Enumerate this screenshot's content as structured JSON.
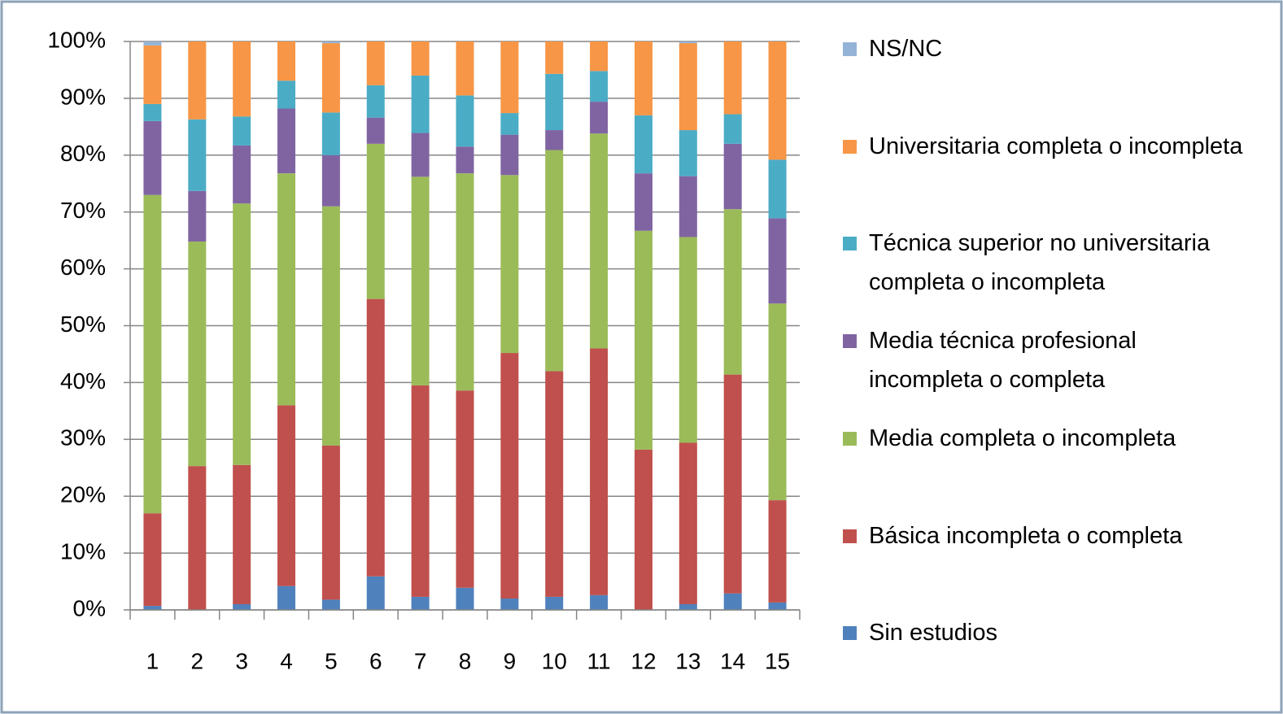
{
  "chart_data": {
    "type": "bar",
    "stacked": true,
    "categories": [
      "1",
      "2",
      "3",
      "4",
      "5",
      "6",
      "7",
      "8",
      "9",
      "10",
      "11",
      "12",
      "13",
      "14",
      "15"
    ],
    "series": [
      {
        "name": "Sin estudios",
        "color": "#4f81bd",
        "values": [
          0.7,
          0,
          1,
          4.2,
          1.8,
          5.9,
          2.3,
          3.9,
          2,
          2.3,
          2.6,
          0,
          1,
          2.9,
          1.3
        ]
      },
      {
        "name": "Básica incompleta o completa",
        "color": "#c0504d",
        "values": [
          16.3,
          25.3,
          24.5,
          31.8,
          27.1,
          48.8,
          37.2,
          34.7,
          43.2,
          39.7,
          43.4,
          28.2,
          28.4,
          38.5,
          18
        ]
      },
      {
        "name": "Media completa o incompleta",
        "color": "#9bbb59",
        "values": [
          56,
          39.5,
          46,
          40.8,
          42.1,
          27.3,
          36.7,
          38.2,
          31.3,
          38.9,
          37.8,
          38.5,
          36.2,
          29.1,
          34.6
        ]
      },
      {
        "name": "Media técnica profesional incompleta o completa",
        "color": "#8064a2",
        "values": [
          13,
          8.9,
          10.2,
          11.4,
          9,
          4.6,
          7.7,
          4.7,
          7.1,
          3.5,
          5.6,
          10.1,
          10.7,
          11.5,
          15
        ]
      },
      {
        "name": "Técnica superior no universitaria completa o incompleta",
        "color": "#4bacc6",
        "values": [
          3,
          12.6,
          5.1,
          4.9,
          7.5,
          5.7,
          10.1,
          9,
          3.8,
          9.9,
          5.4,
          10.2,
          8.1,
          5.2,
          10.3
        ]
      },
      {
        "name": "Universitaria completa o incompleta",
        "color": "#f79646",
        "values": [
          10.3,
          13.7,
          13.2,
          6.9,
          12.2,
          7.7,
          6,
          9.5,
          12.6,
          5.7,
          5.2,
          13,
          15.3,
          12.8,
          20.8
        ]
      },
      {
        "name": "NS/NC",
        "color": "#95b3d7",
        "values": [
          0.7,
          0,
          0,
          0,
          0.3,
          0,
          0,
          0,
          0,
          0,
          0,
          0,
          0.3,
          0,
          0
        ]
      }
    ],
    "ylim": [
      0,
      100
    ],
    "yticks": [
      {
        "value": 0,
        "label": "0%"
      },
      {
        "value": 10,
        "label": "10%"
      },
      {
        "value": 20,
        "label": "20%"
      },
      {
        "value": 30,
        "label": "30%"
      },
      {
        "value": 40,
        "label": "40%"
      },
      {
        "value": 50,
        "label": "50%"
      },
      {
        "value": 60,
        "label": "60%"
      },
      {
        "value": 70,
        "label": "70%"
      },
      {
        "value": 80,
        "label": "80%"
      },
      {
        "value": 90,
        "label": "90%"
      },
      {
        "value": 100,
        "label": "100%"
      }
    ],
    "grid": true,
    "legend": "right"
  }
}
